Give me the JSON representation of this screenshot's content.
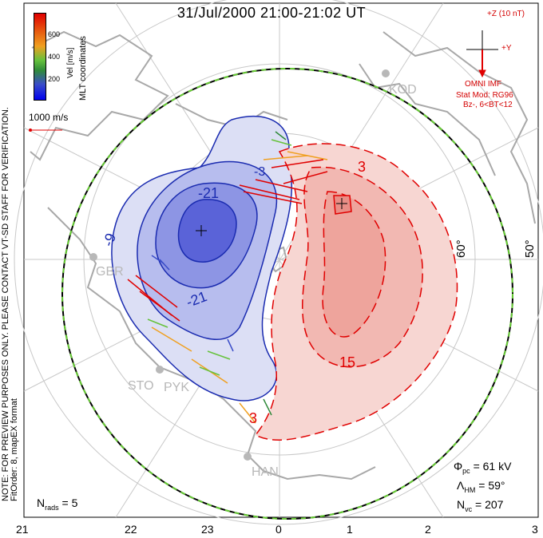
{
  "title": "31/Jul/2000 21:00-21:02 UT",
  "colorbar": {
    "axis_label": "Vel [m/s]",
    "ticks": [
      "600",
      "400",
      "200"
    ],
    "colors": [
      "#0000ee",
      "#3a4dc8",
      "#2f8a3a",
      "#66c23c",
      "#f0a020",
      "#e86010",
      "#e00000"
    ]
  },
  "coords_label": "MLT coordinates",
  "vector_scale_label": "1000 m/s",
  "side_notes": [
    "NOTE: FOR PREVIEW PURPOSES ONLY. PLEASE CONTACT VT-SD STAFF FOR VERIFICATION.",
    "FitOrder: 8, mapEX format"
  ],
  "imf": {
    "z_label": "+Z (10 nT)",
    "y_label": "+Y",
    "source": "OMNI IMF",
    "model_line1": "Stat Mod: RG96",
    "model_line2": "Bz-, 6<BT<12"
  },
  "latitude_labels": [
    "60°",
    "50°"
  ],
  "stations": [
    "KOD",
    "GBR",
    "STO",
    "PYK",
    "HAN"
  ],
  "contour_labels": {
    "negative": [
      "-9",
      "-21",
      "-21",
      "-3"
    ],
    "positive": [
      "3",
      "15",
      "3"
    ]
  },
  "stats": {
    "phi_pc": "Φ",
    "phi_pc_sub": "pc",
    "phi_pc_value": "= 61 kV",
    "lambda_hm": "Λ",
    "lambda_hm_sub": "HM",
    "lambda_hm_value": "= 59°",
    "n_vc": "N",
    "n_vc_sub": "vc",
    "n_vc_value": "= 207",
    "n_rads": "N",
    "n_rads_sub": "rads",
    "n_rads_value": "= 5"
  },
  "mlt_axis": [
    "21",
    "22",
    "23",
    "0",
    "1",
    "2",
    "3"
  ],
  "colors": {
    "negative_fill": "#c9cdf0",
    "negative_line": "#1a2bb0",
    "positive_fill": "#f7d0cc",
    "positive_line": "#e00000",
    "grid": "#c8c8c8",
    "coast": "#a8a8a8",
    "hm_boundary": "#66cc33"
  }
}
